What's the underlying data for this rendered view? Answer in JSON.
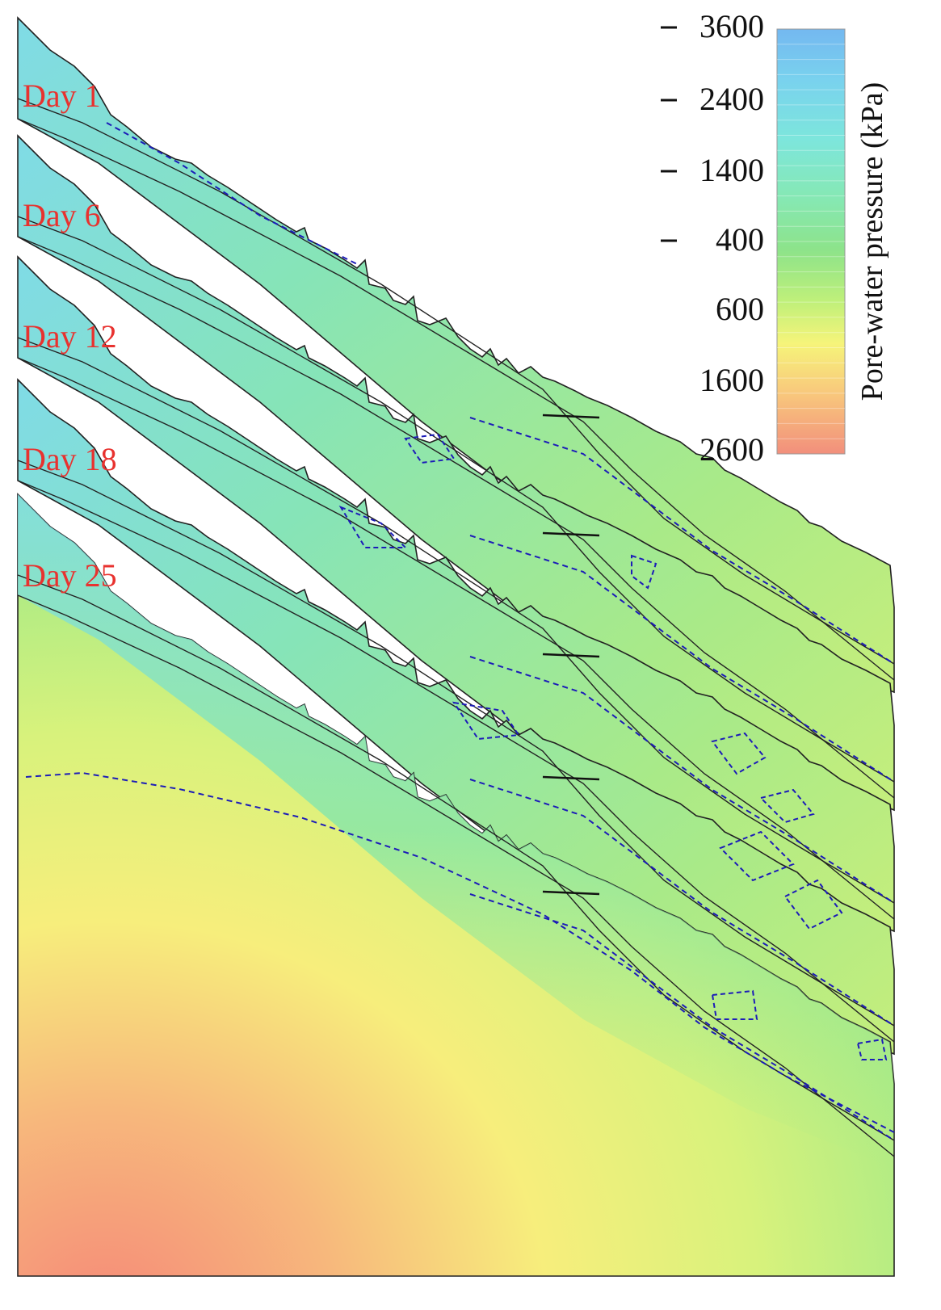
{
  "figure": {
    "panels": [
      {
        "label": "Day 1"
      },
      {
        "label": "Day 6"
      },
      {
        "label": "Day 12"
      },
      {
        "label": "Day 18"
      },
      {
        "label": "Day 25"
      }
    ]
  },
  "colorbar": {
    "title": "Pore-water pressure (kPa)",
    "ticks": [
      {
        "label": "3600",
        "value": -3600,
        "dash": true
      },
      {
        "label": "2400",
        "value": -2400,
        "dash": true
      },
      {
        "label": "1400",
        "value": -1400,
        "dash": true
      },
      {
        "label": "400",
        "value": -400,
        "dash": true
      },
      {
        "label": "600",
        "value": 600,
        "dash": false
      },
      {
        "label": "1600",
        "value": 1600,
        "dash": false
      },
      {
        "label": "2600",
        "value": 2600,
        "dash": false
      }
    ],
    "colors": [
      "#74b8f0",
      "#79d2ee",
      "#7de6dc",
      "#86e8b3",
      "#8de38a",
      "#bff07a",
      "#f6f47a",
      "#f8c77c",
      "#f28f7c"
    ]
  },
  "colors": {
    "day_label": "#e8322f",
    "contour_line": "#1c1cb8",
    "outline": "#222222"
  }
}
